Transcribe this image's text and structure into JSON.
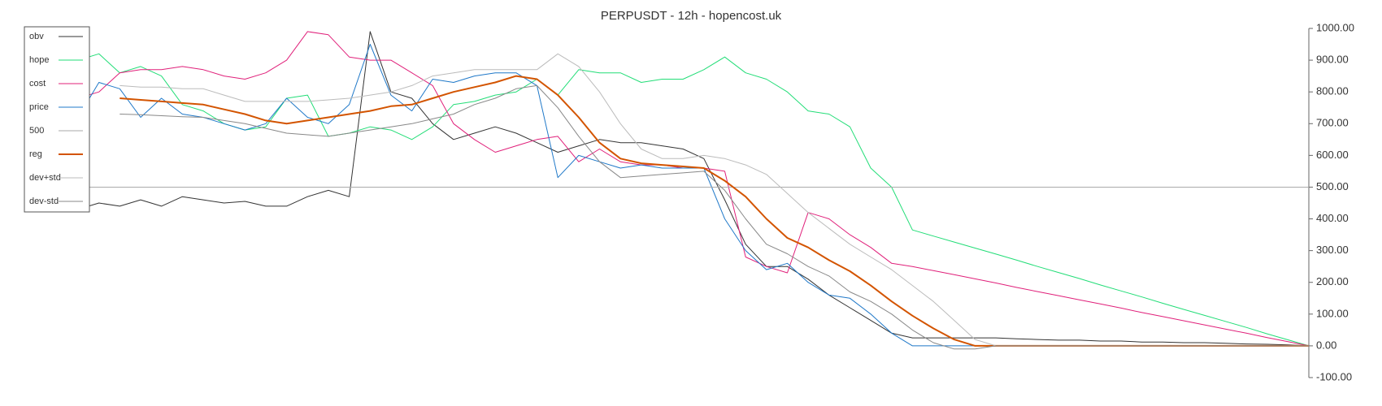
{
  "chart_data": {
    "type": "line",
    "title": "PERPUSDT - 12h - hopencost.uk",
    "categories": [
      null,
      null,
      null,
      null,
      null,
      null,
      null,
      null,
      null,
      null,
      null,
      null,
      null,
      null,
      null,
      null,
      null,
      null,
      null,
      null,
      null,
      null,
      null,
      null,
      null,
      null,
      null,
      null,
      null,
      null,
      null,
      null,
      null,
      null,
      null,
      null,
      null,
      null,
      null,
      null,
      null,
      null,
      null,
      null,
      null,
      null,
      null,
      null,
      null,
      null,
      null,
      null,
      null,
      null,
      null,
      null,
      null,
      null,
      null,
      null
    ],
    "ylim": [
      -100,
      1000
    ],
    "yticks": [
      {
        "value": -100,
        "label": "-100.00"
      },
      {
        "value": 0,
        "label": "0.00"
      },
      {
        "value": 100,
        "label": "100.00"
      },
      {
        "value": 200,
        "label": "200.00"
      },
      {
        "value": 300,
        "label": "300.00"
      },
      {
        "value": 400,
        "label": "400.00"
      },
      {
        "value": 500,
        "label": "500.00"
      },
      {
        "value": 600,
        "label": "600.00"
      },
      {
        "value": 700,
        "label": "700.00"
      },
      {
        "value": 800,
        "label": "800.00"
      },
      {
        "value": 900,
        "label": "900.00"
      },
      {
        "value": 1000,
        "label": "1000.00"
      }
    ],
    "y_axis_side": "right",
    "legend": "upper left",
    "series": [
      {
        "name": "obv",
        "color": "#333333",
        "width": 1,
        "values": [
          430,
          450,
          440,
          460,
          440,
          470,
          460,
          450,
          455,
          440,
          440,
          470,
          490,
          470,
          990,
          800,
          780,
          700,
          650,
          670,
          690,
          670,
          640,
          610,
          630,
          650,
          640,
          640,
          630,
          620,
          590,
          460,
          320,
          250,
          250,
          210,
          160,
          120,
          80,
          40,
          25,
          25,
          25,
          25,
          25,
          22,
          20,
          18,
          18,
          15,
          15,
          12,
          12,
          10,
          10,
          8,
          6,
          5,
          3,
          0
        ]
      },
      {
        "name": "hope",
        "color": "#22dd77",
        "width": 1,
        "values": [
          900,
          920,
          860,
          880,
          850,
          760,
          740,
          700,
          680,
          690,
          780,
          790,
          660,
          670,
          690,
          680,
          650,
          690,
          760,
          770,
          790,
          800,
          840,
          790,
          870,
          860,
          860,
          830,
          840,
          840,
          870,
          910,
          860,
          840,
          800,
          740,
          730,
          690,
          560,
          500,
          365,
          346,
          327,
          308,
          289,
          270,
          250,
          231,
          212,
          192,
          173,
          154,
          134,
          115,
          96,
          77,
          58,
          38,
          19,
          0
        ]
      },
      {
        "name": "cost",
        "color": "#e0207a",
        "width": 1,
        "values": [
          780,
          800,
          860,
          870,
          870,
          880,
          870,
          850,
          840,
          860,
          900,
          990,
          980,
          910,
          900,
          900,
          860,
          820,
          700,
          650,
          610,
          630,
          650,
          660,
          580,
          620,
          580,
          570,
          570,
          560,
          560,
          550,
          280,
          250,
          230,
          420,
          400,
          350,
          310,
          260,
          250,
          237,
          224,
          211,
          198,
          184,
          171,
          158,
          145,
          132,
          119,
          105,
          92,
          79,
          66,
          53,
          40,
          26,
          13,
          0
        ]
      },
      {
        "name": "price",
        "color": "#1f78c8",
        "width": 1,
        "values": [
          720,
          830,
          810,
          720,
          780,
          730,
          720,
          700,
          680,
          700,
          780,
          720,
          700,
          760,
          950,
          790,
          740,
          840,
          830,
          850,
          860,
          860,
          820,
          530,
          600,
          580,
          560,
          570,
          560,
          560,
          560,
          400,
          300,
          240,
          260,
          200,
          160,
          150,
          100,
          40,
          0,
          0,
          0,
          0,
          0,
          0,
          0,
          0,
          0,
          0,
          0,
          0,
          0,
          0,
          0,
          0,
          0,
          0,
          0,
          0
        ]
      },
      {
        "name": "500",
        "color": "#aaaaaa",
        "width": 1,
        "values": [
          500,
          500,
          500,
          500,
          500,
          500,
          500,
          500,
          500,
          500,
          500,
          500,
          500,
          500,
          500,
          500,
          500,
          500,
          500,
          500,
          500,
          500,
          500,
          500,
          500,
          500,
          500,
          500,
          500,
          500,
          500,
          500,
          500,
          500,
          500,
          500,
          500,
          500,
          500,
          500,
          500,
          500,
          500,
          500,
          500,
          500,
          500,
          500,
          500,
          500,
          500,
          500,
          500,
          500,
          500,
          500,
          500,
          500,
          500,
          500
        ]
      },
      {
        "name": "reg",
        "color": "#d35400",
        "width": 2,
        "values": [
          null,
          null,
          780,
          775,
          770,
          765,
          760,
          745,
          730,
          710,
          700,
          710,
          720,
          730,
          740,
          755,
          760,
          780,
          800,
          815,
          830,
          850,
          840,
          790,
          720,
          640,
          590,
          575,
          570,
          565,
          560,
          520,
          470,
          400,
          340,
          310,
          270,
          235,
          190,
          140,
          95,
          55,
          20,
          0,
          0,
          0,
          0,
          0,
          0,
          0,
          0,
          0,
          0,
          0,
          0,
          0,
          0,
          0,
          0,
          0
        ]
      },
      {
        "name": "dev+std",
        "color": "#bbbbbb",
        "width": 1,
        "values": [
          null,
          null,
          820,
          815,
          815,
          810,
          810,
          790,
          770,
          770,
          770,
          770,
          775,
          780,
          790,
          800,
          820,
          850,
          860,
          870,
          870,
          870,
          870,
          920,
          880,
          800,
          700,
          620,
          590,
          590,
          600,
          590,
          570,
          540,
          480,
          420,
          370,
          320,
          280,
          240,
          190,
          140,
          80,
          20,
          0,
          0,
          0,
          0,
          0,
          0,
          0,
          0,
          0,
          0,
          0,
          0,
          0,
          0,
          0,
          0
        ]
      },
      {
        "name": "dev-std",
        "color": "#888888",
        "width": 1,
        "values": [
          null,
          null,
          730,
          728,
          725,
          722,
          720,
          710,
          700,
          685,
          670,
          665,
          660,
          670,
          680,
          690,
          700,
          715,
          730,
          760,
          780,
          810,
          820,
          750,
          660,
          580,
          530,
          535,
          540,
          545,
          550,
          490,
          400,
          320,
          290,
          250,
          220,
          170,
          140,
          100,
          50,
          10,
          -10,
          -10,
          0,
          0,
          0,
          0,
          0,
          0,
          0,
          0,
          0,
          0,
          0,
          0,
          0,
          0,
          0,
          0
        ]
      }
    ]
  }
}
